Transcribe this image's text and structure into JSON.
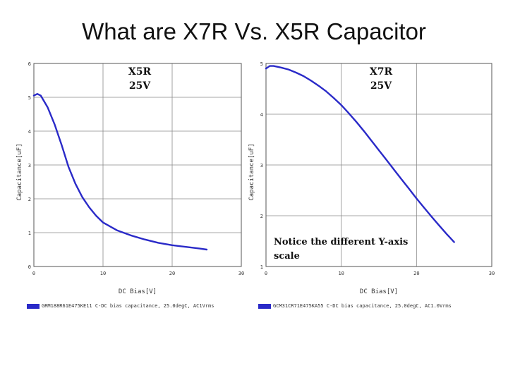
{
  "title": "What are X7R Vs. X5R Capacitor",
  "colors": {
    "series": "#2a2ac8",
    "grid": "#8a8a8a",
    "frame": "#555555"
  },
  "chart_data": [
    {
      "type": "line",
      "panel_label": [
        "X5R",
        "25V"
      ],
      "xlabel": "DC Bias[V]",
      "ylabel": "Capacitance[uF]",
      "xlim": [
        0,
        30
      ],
      "ylim": [
        0,
        6
      ],
      "xticks": [
        0,
        10,
        20,
        30
      ],
      "yticks": [
        0,
        1,
        2,
        3,
        4,
        5,
        6
      ],
      "grid": true,
      "legend": "GRM188R61E475KE11 C-DC bias capacitance, 25.0degC, AC1Vrms",
      "legend_position": "bottom-left",
      "series": [
        {
          "x": [
            0,
            0.5,
            1,
            2,
            3,
            4,
            5,
            6,
            7,
            8,
            9,
            10,
            12,
            14,
            16,
            18,
            20,
            22,
            24,
            25
          ],
          "y": [
            5.05,
            5.1,
            5.05,
            4.7,
            4.2,
            3.6,
            2.95,
            2.45,
            2.05,
            1.75,
            1.5,
            1.3,
            1.07,
            0.92,
            0.8,
            0.7,
            0.63,
            0.58,
            0.53,
            0.5
          ]
        }
      ]
    },
    {
      "type": "line",
      "panel_label": [
        "X7R",
        "25V"
      ],
      "xlabel": "DC Bias[V]",
      "ylabel": "Capacitance[uF]",
      "xlim": [
        0,
        30
      ],
      "ylim": [
        1,
        5
      ],
      "xticks": [
        0,
        10,
        20,
        30
      ],
      "yticks": [
        1,
        2,
        3,
        4,
        5
      ],
      "grid": true,
      "annotation": [
        "Notice the different Y-axis",
        "scale"
      ],
      "legend": "GCM31CR71E475KA55 C-DC bias capacitance, 25.0degC, AC1.0Vrms",
      "legend_position": "bottom-left",
      "series": [
        {
          "x": [
            0,
            0.5,
            1,
            2,
            3,
            4,
            5,
            6,
            7,
            8,
            9,
            10,
            11,
            12,
            13,
            14,
            15,
            16,
            17,
            18,
            19,
            20,
            21,
            22,
            23,
            24,
            25
          ],
          "y": [
            4.9,
            4.95,
            4.95,
            4.92,
            4.88,
            4.82,
            4.75,
            4.66,
            4.56,
            4.45,
            4.32,
            4.18,
            4.02,
            3.85,
            3.67,
            3.48,
            3.29,
            3.1,
            2.91,
            2.72,
            2.53,
            2.34,
            2.16,
            1.98,
            1.81,
            1.64,
            1.48
          ]
        }
      ]
    }
  ]
}
